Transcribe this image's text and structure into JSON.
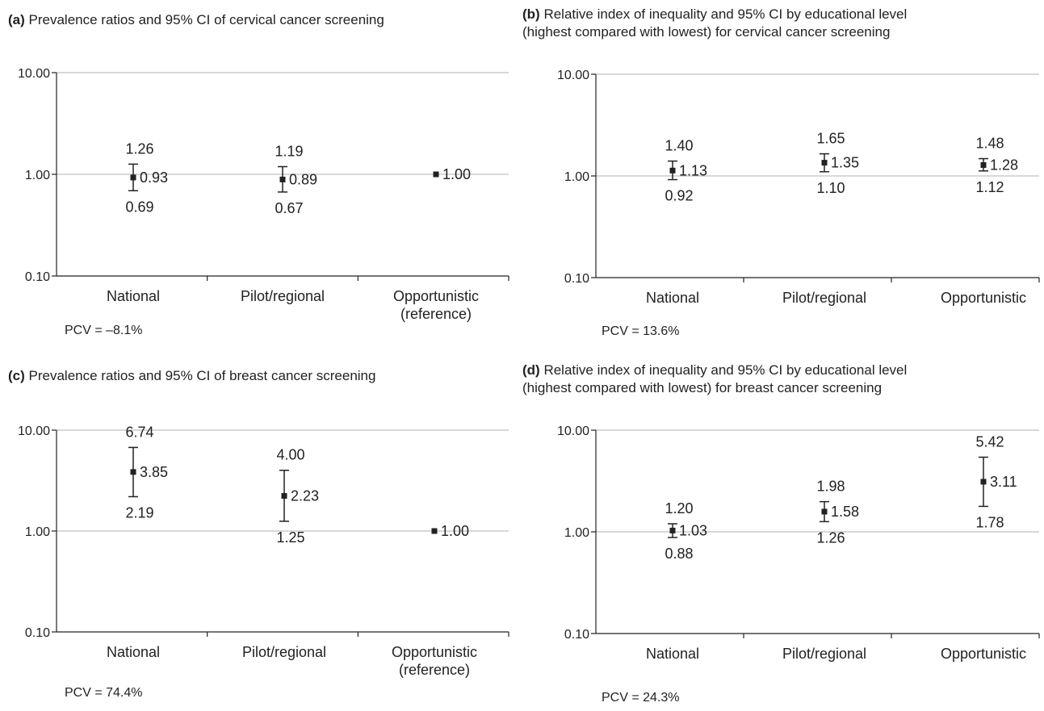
{
  "chart_data": [
    {
      "id": "a",
      "type": "scatter",
      "panel_letter": "a",
      "title_lines": [
        "Prevalence ratios and 95% CI of cervical cancer screening"
      ],
      "y_scale": "log",
      "ylim": [
        0.1,
        10
      ],
      "y_ticks": [
        "0.10",
        "1.00",
        "10.00"
      ],
      "grid": true,
      "categories": [
        [
          "National"
        ],
        [
          "Pilot/regional"
        ],
        [
          "Opportunistic",
          "(reference)"
        ]
      ],
      "points": [
        {
          "category": "National",
          "estimate": 0.93,
          "lower": 0.69,
          "upper": 1.26,
          "estimate_label": "0.93",
          "lower_label": "0.69",
          "upper_label": "1.26"
        },
        {
          "category": "Pilot/regional",
          "estimate": 0.89,
          "lower": 0.67,
          "upper": 1.19,
          "estimate_label": "0.89",
          "lower_label": "0.67",
          "upper_label": "1.19"
        },
        {
          "category": "Opportunistic (reference)",
          "estimate": 1.0,
          "lower": null,
          "upper": null,
          "estimate_label": "1.00",
          "lower_label": "",
          "upper_label": ""
        }
      ],
      "pcv_text": "PCV = –8.1%"
    },
    {
      "id": "b",
      "type": "scatter",
      "panel_letter": "b",
      "title_lines": [
        "Relative index of inequality and 95% CI by educational level",
        "(highest compared with lowest) for cervical cancer screening"
      ],
      "y_scale": "log",
      "ylim": [
        0.1,
        10
      ],
      "y_ticks": [
        "0.10",
        "1.00",
        "10.00"
      ],
      "grid": true,
      "categories": [
        [
          "National"
        ],
        [
          "Pilot/regional"
        ],
        [
          "Opportunistic"
        ]
      ],
      "points": [
        {
          "category": "National",
          "estimate": 1.13,
          "lower": 0.92,
          "upper": 1.4,
          "estimate_label": "1.13",
          "lower_label": "0.92",
          "upper_label": "1.40"
        },
        {
          "category": "Pilot/regional",
          "estimate": 1.35,
          "lower": 1.1,
          "upper": 1.65,
          "estimate_label": "1.35",
          "lower_label": "1.10",
          "upper_label": "1.65"
        },
        {
          "category": "Opportunistic",
          "estimate": 1.28,
          "lower": 1.12,
          "upper": 1.48,
          "estimate_label": "1.28",
          "lower_label": "1.12",
          "upper_label": "1.48"
        }
      ],
      "pcv_text": "PCV = 13.6%"
    },
    {
      "id": "c",
      "type": "scatter",
      "panel_letter": "c",
      "title_lines": [
        "Prevalence ratios and 95% CI of breast cancer screening"
      ],
      "y_scale": "log",
      "ylim": [
        0.1,
        10
      ],
      "y_ticks": [
        "0.10",
        "1.00",
        "10.00"
      ],
      "grid": true,
      "categories": [
        [
          "National"
        ],
        [
          "Pilot/regional"
        ],
        [
          "Opportunistic",
          "(reference)"
        ]
      ],
      "points": [
        {
          "category": "National",
          "estimate": 3.85,
          "lower": 2.19,
          "upper": 6.74,
          "estimate_label": "3.85",
          "lower_label": "2.19",
          "upper_label": "6.74"
        },
        {
          "category": "Pilot/regional",
          "estimate": 2.23,
          "lower": 1.25,
          "upper": 4.0,
          "estimate_label": "2.23",
          "lower_label": "1.25",
          "upper_label": "4.00"
        },
        {
          "category": "Opportunistic (reference)",
          "estimate": 1.0,
          "lower": null,
          "upper": null,
          "estimate_label": "1.00",
          "lower_label": "",
          "upper_label": ""
        }
      ],
      "pcv_text": "PCV = 74.4%"
    },
    {
      "id": "d",
      "type": "scatter",
      "panel_letter": "d",
      "title_lines": [
        "Relative index of inequality and 95% CI by educational level",
        "(highest compared with lowest) for breast cancer screening"
      ],
      "y_scale": "log",
      "ylim": [
        0.1,
        10
      ],
      "y_ticks": [
        "0.10",
        "1.00",
        "10.00"
      ],
      "grid": true,
      "categories": [
        [
          "National"
        ],
        [
          "Pilot/regional"
        ],
        [
          "Opportunistic"
        ]
      ],
      "points": [
        {
          "category": "National",
          "estimate": 1.03,
          "lower": 0.88,
          "upper": 1.2,
          "estimate_label": "1.03",
          "lower_label": "0.88",
          "upper_label": "1.20"
        },
        {
          "category": "Pilot/regional",
          "estimate": 1.58,
          "lower": 1.26,
          "upper": 1.98,
          "estimate_label": "1.58",
          "lower_label": "1.26",
          "upper_label": "1.98"
        },
        {
          "category": "Opportunistic",
          "estimate": 3.11,
          "lower": 1.78,
          "upper": 5.42,
          "estimate_label": "3.11",
          "lower_label": "1.78",
          "upper_label": "5.42"
        }
      ],
      "pcv_text": "PCV = 24.3%"
    }
  ],
  "colors": {
    "axis": "#222222",
    "grid": "#b0b0b0",
    "text": "#222222"
  }
}
